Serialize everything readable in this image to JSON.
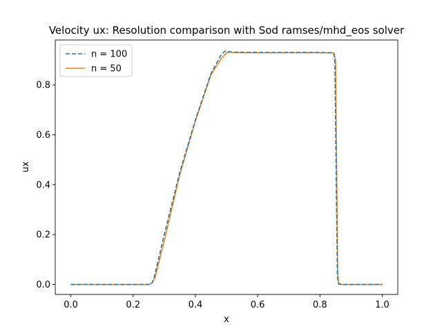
{
  "chart_data": {
    "type": "line",
    "title": "Velocity ux: Resolution comparison with Sod ramses/mhd_eos solver",
    "xlabel": "x",
    "ylabel": "ux",
    "xlim": [
      -0.05,
      1.05
    ],
    "ylim": [
      -0.04,
      0.98
    ],
    "xticks": [
      "0.0",
      "0.2",
      "0.4",
      "0.6",
      "0.8",
      "1.0"
    ],
    "xtick_values": [
      0.0,
      0.2,
      0.4,
      0.6,
      0.8,
      1.0
    ],
    "yticks": [
      "0.0",
      "0.2",
      "0.4",
      "0.6",
      "0.8"
    ],
    "ytick_values": [
      0.0,
      0.2,
      0.4,
      0.6,
      0.8
    ],
    "grid": false,
    "legend_position": "top-left",
    "series": [
      {
        "name": "n = 100",
        "color": "#1f77b4",
        "style": "dashed",
        "x": [
          0.0,
          0.255,
          0.262,
          0.27,
          0.3,
          0.35,
          0.4,
          0.45,
          0.48,
          0.49,
          0.497,
          0.505,
          0.52,
          0.6,
          0.7,
          0.8,
          0.84,
          0.845,
          0.848,
          0.852,
          0.856,
          0.86,
          0.87,
          0.9,
          1.0
        ],
        "y": [
          0.0,
          0.0,
          0.008,
          0.04,
          0.2,
          0.45,
          0.66,
          0.845,
          0.915,
          0.93,
          0.936,
          0.934,
          0.931,
          0.93,
          0.93,
          0.93,
          0.929,
          0.924,
          0.89,
          0.45,
          0.03,
          0.002,
          0.0,
          0.0,
          0.0
        ]
      },
      {
        "name": "n = 50",
        "color": "#ff7f0e",
        "style": "solid",
        "x": [
          0.0,
          0.25,
          0.26,
          0.27,
          0.3,
          0.35,
          0.4,
          0.45,
          0.48,
          0.49,
          0.5,
          0.51,
          0.52,
          0.6,
          0.7,
          0.8,
          0.845,
          0.85,
          0.853,
          0.857,
          0.86,
          0.87,
          0.9,
          1.0
        ],
        "y": [
          0.0,
          0.0,
          0.005,
          0.025,
          0.175,
          0.44,
          0.655,
          0.84,
          0.9,
          0.915,
          0.928,
          0.932,
          0.93,
          0.929,
          0.929,
          0.929,
          0.928,
          0.9,
          0.55,
          0.05,
          0.005,
          0.0,
          0.0,
          0.0
        ]
      }
    ]
  }
}
